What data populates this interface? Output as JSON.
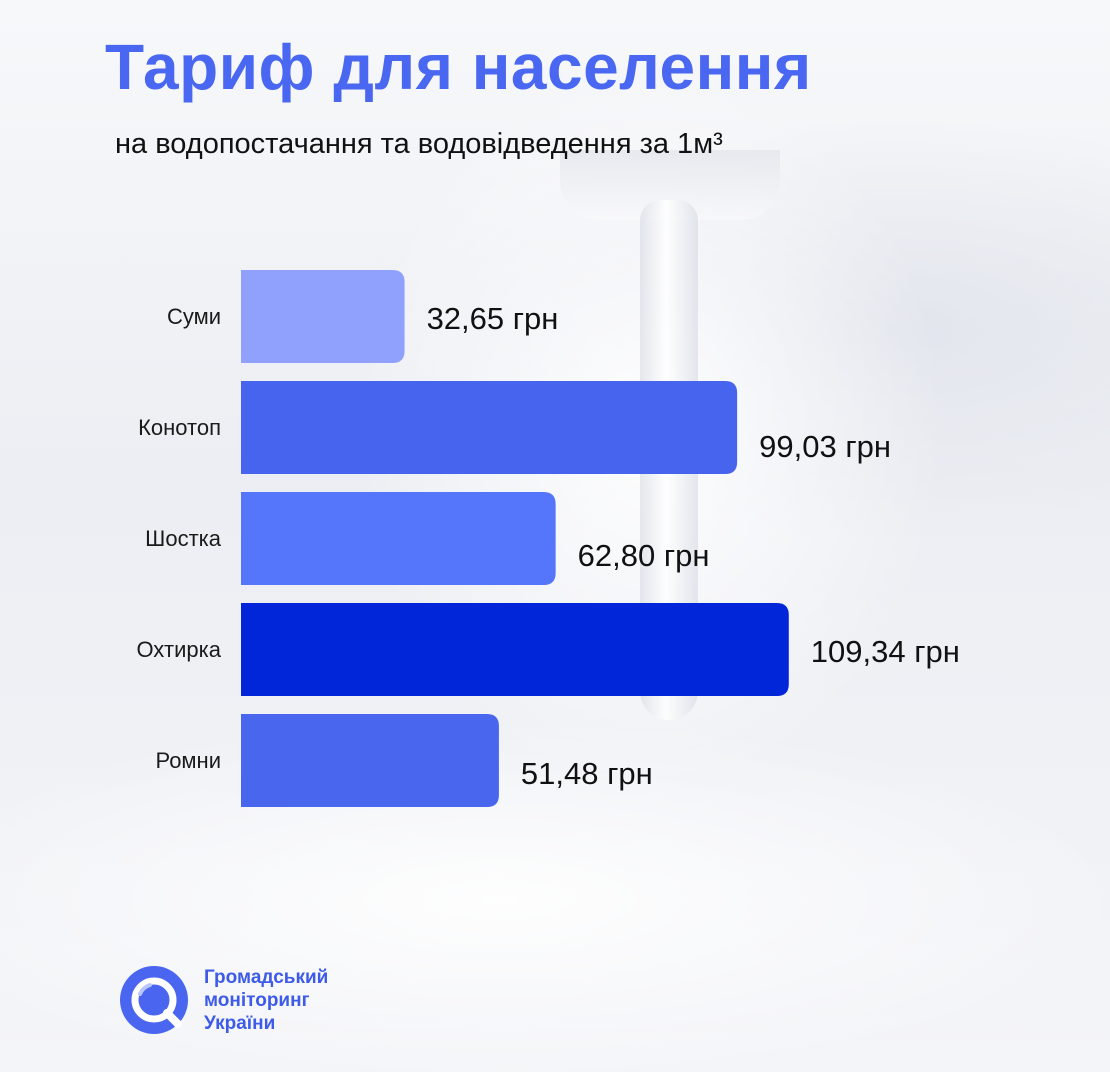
{
  "chart_data": {
    "type": "bar",
    "orientation": "horizontal",
    "title": "Тариф для населення",
    "subtitle": "на водопостачання та водовідведення за 1м³",
    "categories": [
      "Суми",
      "Конотоп",
      "Шостка",
      "Охтирка",
      "Ромни"
    ],
    "values": [
      32.65,
      99.03,
      62.8,
      109.34,
      51.48
    ],
    "value_labels": [
      "32,65 грн",
      "99,03 грн",
      "62,80 грн",
      "109,34 грн",
      "51,48 грн"
    ],
    "colors": [
      "#8fa1fc",
      "#4764ee",
      "#5575fb",
      "#0125d9",
      "#4866ee"
    ],
    "xlim": [
      0,
      120
    ],
    "grid": false,
    "legend": "none"
  },
  "logo": {
    "lines": [
      "Громадський",
      "моніторинг",
      "України"
    ],
    "color": "#3d5be8"
  }
}
